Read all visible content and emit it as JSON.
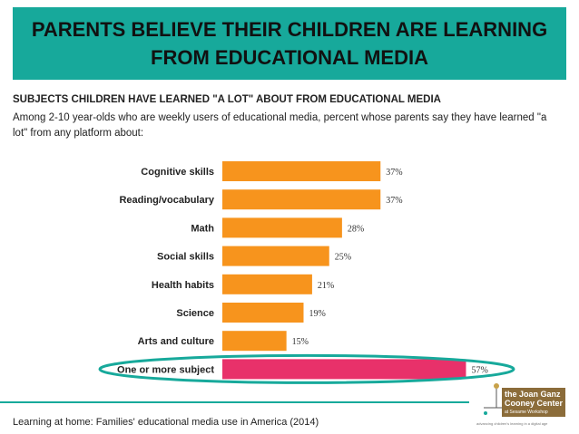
{
  "header": {
    "title_line1": "PARENTS BELIEVE THEIR CHILDREN ARE LEARNING",
    "title_line2": "FROM EDUCATIONAL MEDIA"
  },
  "subtitle": "SUBJECTS CHILDREN HAVE LEARNED \"A LOT\" ABOUT FROM EDUCATIONAL MEDIA",
  "description": "Among 2-10 year-olds who are weekly users of educational media, percent whose parents say they have learned \"a lot\" from any platform about:",
  "footer": "Learning at home: Families' educational media use in America (2014)",
  "logo": {
    "line1": "the Joan Ganz",
    "line2": "Cooney Center",
    "line3": "at Sesame Workshop",
    "tagline": "advancing children's learning in a digital age"
  },
  "colors": {
    "bar": "#f7941d",
    "highlight_bar": "#e8316a",
    "accent": "#17a99b"
  },
  "chart_data": {
    "type": "bar",
    "orientation": "horizontal",
    "categories": [
      "Cognitive skills",
      "Reading/vocabulary",
      "Math",
      "Social skills",
      "Health habits",
      "Science",
      "Arts and culture",
      "One or more subject"
    ],
    "values": [
      37,
      37,
      28,
      25,
      21,
      19,
      15,
      57
    ],
    "value_labels": [
      "37%",
      "37%",
      "28%",
      "25%",
      "21%",
      "19%",
      "15%",
      "57%"
    ],
    "highlighted_category": "One or more subject",
    "xlim": [
      0,
      60
    ],
    "grid": false,
    "legend": false
  }
}
